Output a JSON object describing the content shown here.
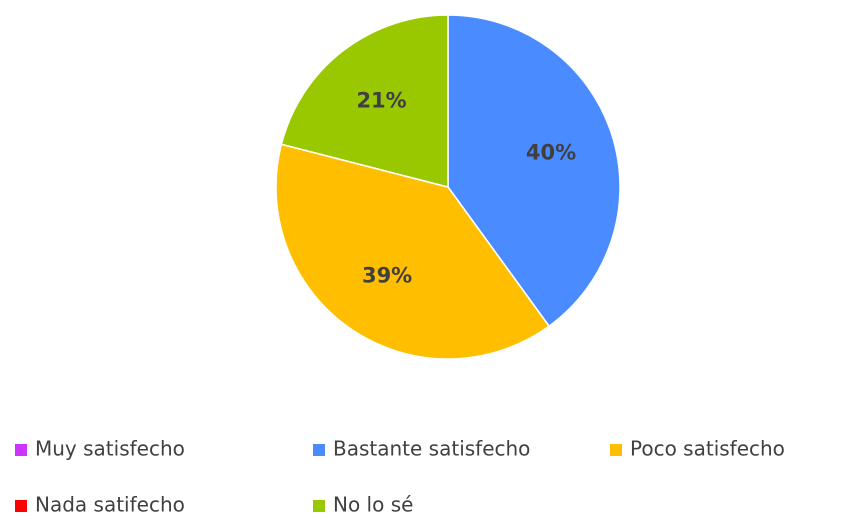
{
  "chart_data": {
    "type": "pie",
    "categories": [
      "Muy satisfecho",
      "Bastante satisfecho",
      "Poco satisfecho",
      "Nada satifecho",
      "No lo sé"
    ],
    "values": [
      0,
      40,
      39,
      0,
      21
    ],
    "value_labels": [
      null,
      "40%",
      "39%",
      null,
      "21%"
    ],
    "colors": [
      "#cc33ff",
      "#4a8cff",
      "#ffbf00",
      "#ff0000",
      "#99c800"
    ],
    "legend": "bottom"
  }
}
